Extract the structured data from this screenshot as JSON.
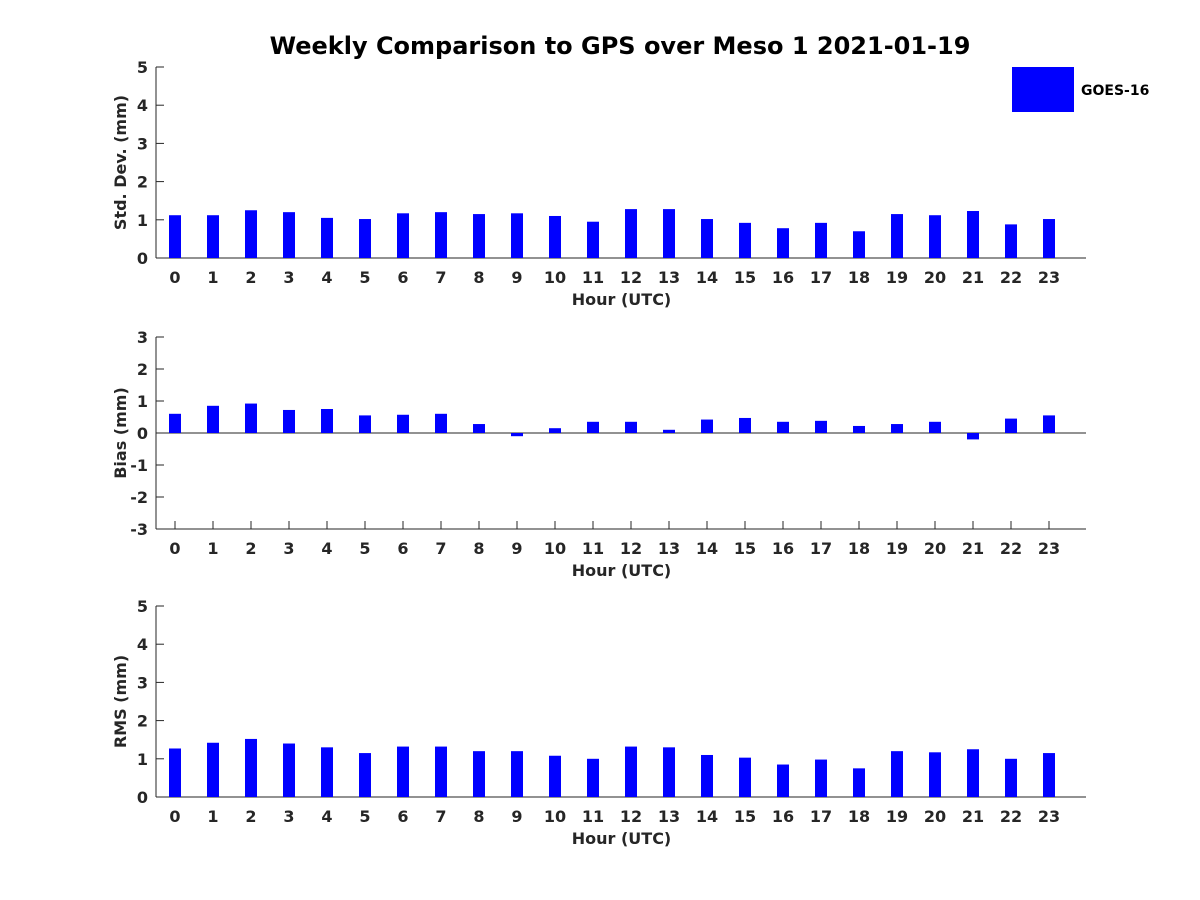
{
  "chart_data": {
    "type": "bar",
    "title": "Weekly Comparison to GPS over Meso 1 2021-01-19",
    "legend": {
      "entries": [
        "GOES-16"
      ],
      "position": "top-right",
      "color": "#0000ff"
    },
    "categories": [
      "0",
      "1",
      "2",
      "3",
      "4",
      "5",
      "6",
      "7",
      "8",
      "9",
      "10",
      "11",
      "12",
      "13",
      "14",
      "15",
      "16",
      "17",
      "18",
      "19",
      "20",
      "21",
      "22",
      "23"
    ],
    "panels": [
      {
        "key": "std",
        "ylabel": "Std. Dev. (mm)",
        "xlabel": "Hour (UTC)",
        "ylim": [
          0,
          5
        ],
        "yticks": [
          "0",
          "1",
          "2",
          "3",
          "4",
          "5"
        ],
        "series": [
          {
            "name": "GOES-16",
            "values": [
              1.12,
              1.12,
              1.25,
              1.2,
              1.05,
              1.02,
              1.17,
              1.2,
              1.15,
              1.17,
              1.1,
              0.95,
              1.28,
              1.28,
              1.02,
              0.92,
              0.78,
              0.92,
              0.7,
              1.15,
              1.12,
              1.23,
              0.88,
              1.02
            ]
          }
        ]
      },
      {
        "key": "bias",
        "ylabel": "Bias (mm)",
        "xlabel": "Hour (UTC)",
        "ylim": [
          -3,
          3
        ],
        "yticks": [
          "-3",
          "-2",
          "-1",
          "0",
          "1",
          "2",
          "3"
        ],
        "series": [
          {
            "name": "GOES-16",
            "values": [
              0.6,
              0.85,
              0.92,
              0.72,
              0.75,
              0.55,
              0.57,
              0.6,
              0.28,
              -0.1,
              0.15,
              0.35,
              0.35,
              0.1,
              0.42,
              0.47,
              0.35,
              0.38,
              0.22,
              0.28,
              0.35,
              -0.2,
              0.45,
              0.55
            ]
          }
        ]
      },
      {
        "key": "rms",
        "ylabel": "RMS (mm)",
        "xlabel": "Hour (UTC)",
        "ylim": [
          0,
          5
        ],
        "yticks": [
          "0",
          "1",
          "2",
          "3",
          "4",
          "5"
        ],
        "series": [
          {
            "name": "GOES-16",
            "values": [
              1.27,
              1.42,
              1.52,
              1.4,
              1.3,
              1.15,
              1.32,
              1.32,
              1.2,
              1.2,
              1.08,
              1.0,
              1.32,
              1.3,
              1.1,
              1.03,
              0.85,
              0.98,
              0.75,
              1.2,
              1.17,
              1.25,
              1.0,
              1.15
            ]
          }
        ]
      }
    ]
  }
}
